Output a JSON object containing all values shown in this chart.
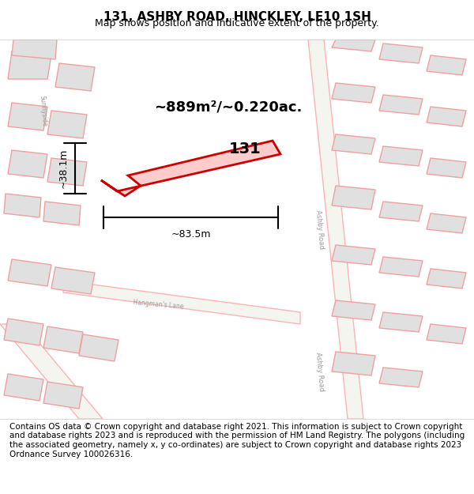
{
  "title": "131, ASHBY ROAD, HINCKLEY, LE10 1SH",
  "subtitle": "Map shows position and indicative extent of the property.",
  "area_text": "~889m²/~0.220ac.",
  "label_131": "131",
  "dim_width": "~83.5m",
  "dim_height": "~38.1m",
  "footer": "Contains OS data © Crown copyright and database right 2021. This information is subject to Crown copyright and database rights 2023 and is reproduced with the permission of HM Land Registry. The polygons (including the associated geometry, namely x, y co-ordinates) are subject to Crown copyright and database rights 2023 Ordnance Survey 100026316.",
  "bg_color": "#f5f5f0",
  "map_bg": "#ffffff",
  "plot_color_fill": "#ffcccc",
  "plot_color_edge": "#cc0000",
  "road_color": "#ffcccc",
  "building_fill": "#e8e8e8",
  "building_edge": "#ffaaaa",
  "title_fontsize": 11,
  "subtitle_fontsize": 9,
  "footer_fontsize": 7.5
}
